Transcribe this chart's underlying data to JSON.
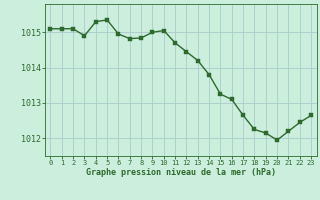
{
  "x": [
    0,
    1,
    2,
    3,
    4,
    5,
    6,
    7,
    8,
    9,
    10,
    11,
    12,
    13,
    14,
    15,
    16,
    17,
    18,
    19,
    20,
    21,
    22,
    23
  ],
  "y": [
    1015.1,
    1015.1,
    1015.1,
    1014.9,
    1015.3,
    1015.35,
    1014.95,
    1014.82,
    1014.84,
    1015.0,
    1015.05,
    1014.7,
    1014.45,
    1014.2,
    1013.8,
    1013.25,
    1013.1,
    1012.65,
    1012.25,
    1012.15,
    1011.95,
    1012.2,
    1012.45,
    1012.65
  ],
  "line_color": "#2d6a2d",
  "marker_color": "#2d6a2d",
  "bg_color": "#cceedd",
  "grid_color": "#aacccc",
  "axis_label_color": "#2d6a2d",
  "tick_label_color": "#2d6a2d",
  "xlabel": "Graphe pression niveau de la mer (hPa)",
  "ylim_min": 1011.5,
  "ylim_max": 1015.8,
  "yticks": [
    1012,
    1013,
    1014,
    1015
  ],
  "xticks": [
    0,
    1,
    2,
    3,
    4,
    5,
    6,
    7,
    8,
    9,
    10,
    11,
    12,
    13,
    14,
    15,
    16,
    17,
    18,
    19,
    20,
    21,
    22,
    23
  ],
  "xtick_labels": [
    "0",
    "1",
    "2",
    "3",
    "4",
    "5",
    "6",
    "7",
    "8",
    "9",
    "10",
    "11",
    "12",
    "13",
    "14",
    "15",
    "16",
    "17",
    "18",
    "19",
    "20",
    "21",
    "22",
    "23"
  ],
  "line_width": 1.0,
  "marker_size": 2.8
}
